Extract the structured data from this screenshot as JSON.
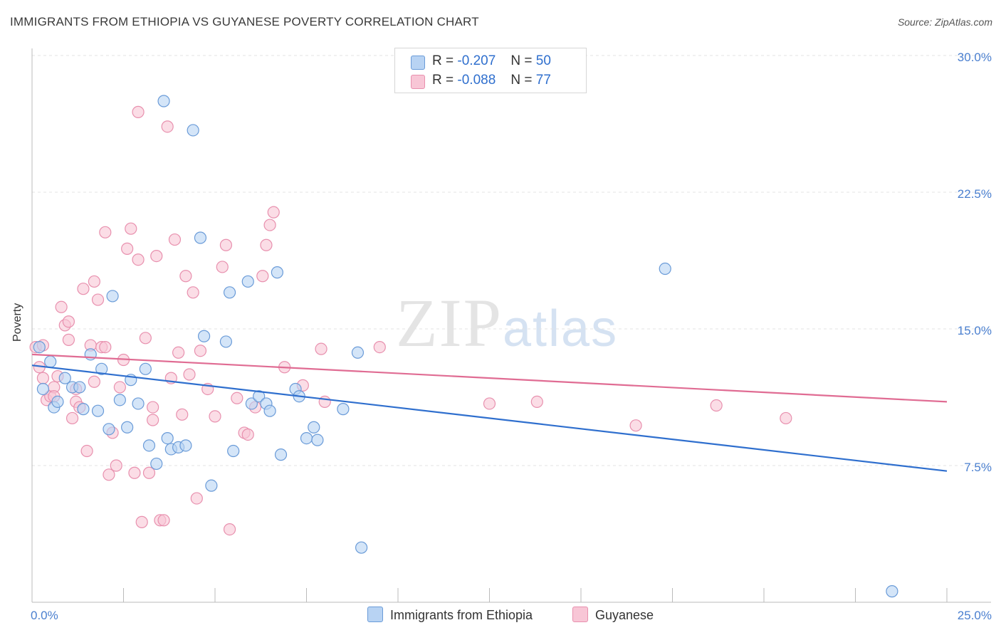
{
  "header": {
    "title": "IMMIGRANTS FROM ETHIOPIA VS GUYANESE POVERTY CORRELATION CHART",
    "source": "Source: ZipAtlas.com"
  },
  "watermark": {
    "zip": "ZIP",
    "atlas": "atlas"
  },
  "legend_top": {
    "rows": [
      {
        "r_label": "R =",
        "r_value": "-0.207",
        "n_label": "N =",
        "n_value": "50"
      },
      {
        "r_label": "R =",
        "r_value": "-0.088",
        "n_label": "N =",
        "n_value": "77"
      }
    ]
  },
  "colors": {
    "ethiopia_fill": "#b8d3f3",
    "ethiopia_stroke": "#6a9bd8",
    "ethiopia_line": "#2f6fce",
    "guyanese_fill": "#f8c6d6",
    "guyanese_stroke": "#e890ae",
    "guyanese_line": "#e06c93",
    "axis_text": "#4a7fcf",
    "grid": "#e3e3e3"
  },
  "chart_data": {
    "type": "scatter",
    "title": "IMMIGRANTS FROM ETHIOPIA VS GUYANESE POVERTY CORRELATION CHART",
    "xlabel": "",
    "ylabel": "Poverty",
    "xlim": [
      0,
      25
    ],
    "ylim": [
      0,
      30
    ],
    "x_tick_labels": [
      "0.0%",
      "25.0%"
    ],
    "y_ticks": [
      7.5,
      15.0,
      22.5,
      30.0
    ],
    "y_tick_labels": [
      "7.5%",
      "15.0%",
      "22.5%",
      "30.0%"
    ],
    "grid": true,
    "legend_position": "bottom",
    "series": [
      {
        "name": "Immigrants from Ethiopia",
        "color": "#6a9bd8",
        "trend": {
          "x": [
            0,
            25
          ],
          "y": [
            13.0,
            7.2
          ]
        },
        "points": [
          [
            0.2,
            14.0
          ],
          [
            0.3,
            11.7
          ],
          [
            0.5,
            13.2
          ],
          [
            0.6,
            10.7
          ],
          [
            0.7,
            11.0
          ],
          [
            0.9,
            12.3
          ],
          [
            1.1,
            11.8
          ],
          [
            1.3,
            11.8
          ],
          [
            1.4,
            10.6
          ],
          [
            1.6,
            13.6
          ],
          [
            1.8,
            10.5
          ],
          [
            1.9,
            12.8
          ],
          [
            2.1,
            9.5
          ],
          [
            2.2,
            16.8
          ],
          [
            2.4,
            11.1
          ],
          [
            2.6,
            9.6
          ],
          [
            2.7,
            12.2
          ],
          [
            2.9,
            10.9
          ],
          [
            3.1,
            12.8
          ],
          [
            3.2,
            8.6
          ],
          [
            3.4,
            7.6
          ],
          [
            3.6,
            27.5
          ],
          [
            3.8,
            8.4
          ],
          [
            3.7,
            9.0
          ],
          [
            4.0,
            8.5
          ],
          [
            4.2,
            8.6
          ],
          [
            4.4,
            25.9
          ],
          [
            4.6,
            20.0
          ],
          [
            4.7,
            14.6
          ],
          [
            4.9,
            6.4
          ],
          [
            5.3,
            14.3
          ],
          [
            5.5,
            8.3
          ],
          [
            5.4,
            17.0
          ],
          [
            5.9,
            17.6
          ],
          [
            6.0,
            10.9
          ],
          [
            6.2,
            11.3
          ],
          [
            6.4,
            10.9
          ],
          [
            6.5,
            10.5
          ],
          [
            6.7,
            18.1
          ],
          [
            6.8,
            8.1
          ],
          [
            7.2,
            11.7
          ],
          [
            7.3,
            11.3
          ],
          [
            7.5,
            9.0
          ],
          [
            7.7,
            9.6
          ],
          [
            7.8,
            8.9
          ],
          [
            8.5,
            10.6
          ],
          [
            8.9,
            13.7
          ],
          [
            9.0,
            3.0
          ],
          [
            17.3,
            18.3
          ],
          [
            23.5,
            0.6
          ]
        ]
      },
      {
        "name": "Guyanese",
        "color": "#e890ae",
        "trend": {
          "x": [
            0,
            25
          ],
          "y": [
            13.6,
            11.0
          ]
        },
        "points": [
          [
            0.1,
            14.0
          ],
          [
            0.2,
            12.9
          ],
          [
            0.3,
            12.3
          ],
          [
            0.4,
            11.1
          ],
          [
            0.5,
            11.3
          ],
          [
            0.6,
            11.8
          ],
          [
            0.7,
            12.4
          ],
          [
            0.8,
            16.2
          ],
          [
            0.9,
            15.2
          ],
          [
            1.0,
            15.4
          ],
          [
            1.0,
            14.4
          ],
          [
            1.1,
            10.1
          ],
          [
            1.2,
            11.0
          ],
          [
            1.3,
            10.7
          ],
          [
            1.4,
            17.2
          ],
          [
            1.5,
            8.3
          ],
          [
            1.6,
            14.1
          ],
          [
            1.7,
            17.6
          ],
          [
            1.8,
            16.6
          ],
          [
            1.9,
            14.0
          ],
          [
            2.0,
            20.3
          ],
          [
            2.1,
            7.0
          ],
          [
            2.2,
            9.3
          ],
          [
            2.3,
            7.5
          ],
          [
            2.4,
            11.8
          ],
          [
            2.5,
            13.3
          ],
          [
            2.6,
            19.4
          ],
          [
            2.7,
            20.5
          ],
          [
            2.8,
            7.1
          ],
          [
            2.9,
            18.8
          ],
          [
            3.0,
            4.4
          ],
          [
            3.1,
            14.5
          ],
          [
            3.2,
            7.1
          ],
          [
            3.3,
            10.0
          ],
          [
            3.4,
            19.0
          ],
          [
            3.5,
            4.5
          ],
          [
            3.6,
            4.5
          ],
          [
            3.7,
            26.1
          ],
          [
            3.8,
            12.3
          ],
          [
            3.9,
            19.9
          ],
          [
            4.0,
            13.7
          ],
          [
            4.1,
            10.3
          ],
          [
            4.2,
            17.9
          ],
          [
            4.3,
            12.5
          ],
          [
            4.4,
            17.0
          ],
          [
            4.5,
            5.7
          ],
          [
            4.6,
            13.8
          ],
          [
            4.8,
            11.7
          ],
          [
            5.0,
            10.2
          ],
          [
            5.2,
            18.4
          ],
          [
            5.3,
            19.6
          ],
          [
            5.4,
            4.0
          ],
          [
            5.6,
            11.2
          ],
          [
            5.8,
            9.3
          ],
          [
            5.9,
            9.2
          ],
          [
            6.1,
            10.7
          ],
          [
            6.3,
            17.9
          ],
          [
            6.4,
            19.6
          ],
          [
            6.5,
            20.7
          ],
          [
            6.6,
            21.4
          ],
          [
            6.9,
            12.9
          ],
          [
            7.4,
            11.9
          ],
          [
            7.9,
            13.9
          ],
          [
            8.0,
            11.0
          ],
          [
            9.5,
            14.0
          ],
          [
            12.5,
            10.9
          ],
          [
            13.8,
            11.0
          ],
          [
            16.5,
            9.7
          ],
          [
            18.7,
            10.8
          ],
          [
            20.6,
            10.1
          ],
          [
            2.9,
            26.9
          ],
          [
            1.2,
            11.7
          ],
          [
            3.3,
            10.7
          ],
          [
            2.0,
            14.0
          ],
          [
            0.3,
            14.1
          ],
          [
            0.6,
            11.3
          ],
          [
            1.7,
            12.1
          ]
        ]
      }
    ]
  }
}
